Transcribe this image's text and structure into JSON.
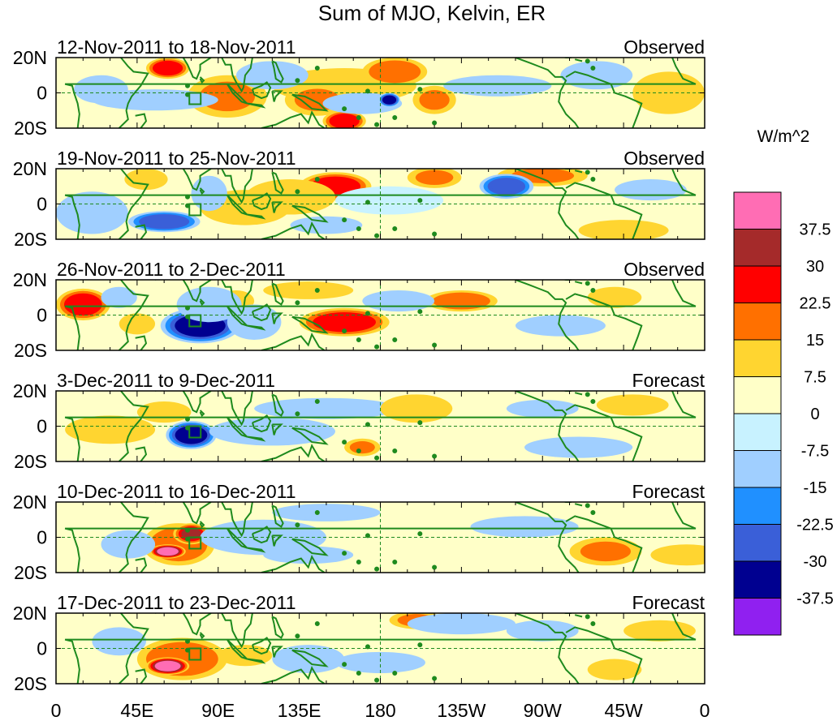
{
  "title": "Sum of MJO, Kelvin, ER",
  "units": "W/m^2",
  "lat_labels": [
    "20N",
    "0",
    "20S"
  ],
  "lon_labels": [
    "0",
    "45E",
    "90E",
    "135E",
    "180",
    "135W",
    "90W",
    "45W",
    "0"
  ],
  "colorbar": {
    "labels": [
      "37.5",
      "30",
      "22.5",
      "15",
      "7.5",
      "0",
      "-7.5",
      "-15",
      "-22.5",
      "-30",
      "-37.5"
    ],
    "colors": [
      "#ff6db4",
      "#a52a2a",
      "#ff0000",
      "#ff7000",
      "#ffd530",
      "#ffffc8",
      "#c8f2ff",
      "#a0cfff",
      "#2090ff",
      "#3a5fd8",
      "#000090",
      "#9020f0"
    ]
  },
  "panels": [
    {
      "period": "12-Nov-2011 to 18-Nov-2011",
      "type": "Observed",
      "blobs": [
        {
          "lon": 160,
          "lat": 4,
          "rx": 40,
          "ry": 10,
          "v": 8
        },
        {
          "lon": 145,
          "lat": -4,
          "rx": 18,
          "ry": 9,
          "v": 15
        },
        {
          "lon": 160,
          "lat": -16,
          "rx": 12,
          "ry": 6,
          "v": 25
        },
        {
          "lon": 62,
          "lat": 14,
          "rx": 12,
          "ry": 6,
          "v": 25
        },
        {
          "lon": 95,
          "lat": -2,
          "rx": 22,
          "ry": 12,
          "v": 15
        },
        {
          "lon": 188,
          "lat": 12,
          "rx": 18,
          "ry": 8,
          "v": 20
        },
        {
          "lon": 210,
          "lat": -4,
          "rx": 12,
          "ry": 8,
          "v": 15
        },
        {
          "lon": 340,
          "lat": 0,
          "rx": 20,
          "ry": 12,
          "v": 8
        },
        {
          "lon": 170,
          "lat": -6,
          "rx": 22,
          "ry": 6,
          "v": -15
        },
        {
          "lon": 185,
          "lat": -4,
          "rx": 6,
          "ry": 4,
          "v": -35
        },
        {
          "lon": 55,
          "lat": -4,
          "rx": 35,
          "ry": 6,
          "v": -12
        },
        {
          "lon": 25,
          "lat": 2,
          "rx": 15,
          "ry": 8,
          "v": -10
        },
        {
          "lon": 245,
          "lat": 4,
          "rx": 30,
          "ry": 6,
          "v": -12
        },
        {
          "lon": 120,
          "lat": 10,
          "rx": 20,
          "ry": 8,
          "v": -10
        },
        {
          "lon": 300,
          "lat": 10,
          "rx": 20,
          "ry": 8,
          "v": -9
        }
      ]
    },
    {
      "period": "19-Nov-2011 to 25-Nov-2011",
      "type": "Observed",
      "blobs": [
        {
          "lon": 155,
          "lat": 10,
          "rx": 20,
          "ry": 8,
          "v": 25
        },
        {
          "lon": 130,
          "lat": 4,
          "rx": 25,
          "ry": 10,
          "v": 10
        },
        {
          "lon": 210,
          "lat": 15,
          "rx": 15,
          "ry": 6,
          "v": 15
        },
        {
          "lon": 270,
          "lat": 16,
          "rx": 25,
          "ry": 6,
          "v": 15
        },
        {
          "lon": 50,
          "lat": 14,
          "rx": 12,
          "ry": 6,
          "v": 10
        },
        {
          "lon": 105,
          "lat": -2,
          "rx": 25,
          "ry": 10,
          "v": 8
        },
        {
          "lon": 315,
          "lat": -15,
          "rx": 25,
          "ry": 6,
          "v": 10
        },
        {
          "lon": 250,
          "lat": 10,
          "rx": 15,
          "ry": 7,
          "v": -30
        },
        {
          "lon": 60,
          "lat": -10,
          "rx": 20,
          "ry": 6,
          "v": -25
        },
        {
          "lon": 85,
          "lat": 6,
          "rx": 10,
          "ry": 10,
          "v": -15
        },
        {
          "lon": 20,
          "lat": -5,
          "rx": 20,
          "ry": 12,
          "v": -9
        },
        {
          "lon": 185,
          "lat": 2,
          "rx": 30,
          "ry": 8,
          "v": -6
        },
        {
          "lon": 150,
          "lat": -12,
          "rx": 20,
          "ry": 5,
          "v": -10
        },
        {
          "lon": 330,
          "lat": 8,
          "rx": 20,
          "ry": 6,
          "v": -9
        }
      ]
    },
    {
      "period": "26-Nov-2011 to 2-Dec-2011",
      "type": "Observed",
      "blobs": [
        {
          "lon": 160,
          "lat": -4,
          "rx": 25,
          "ry": 8,
          "v": 25
        },
        {
          "lon": 15,
          "lat": 6,
          "rx": 15,
          "ry": 9,
          "v": 25
        },
        {
          "lon": 225,
          "lat": 8,
          "rx": 20,
          "ry": 6,
          "v": 18
        },
        {
          "lon": 140,
          "lat": 14,
          "rx": 25,
          "ry": 5,
          "v": 10
        },
        {
          "lon": 45,
          "lat": -5,
          "rx": 10,
          "ry": 6,
          "v": 12
        },
        {
          "lon": 310,
          "lat": 10,
          "rx": 15,
          "ry": 6,
          "v": 8
        },
        {
          "lon": 100,
          "lat": 8,
          "rx": 10,
          "ry": 6,
          "v": 9
        },
        {
          "lon": 80,
          "lat": -6,
          "rx": 22,
          "ry": 10,
          "v": -33
        },
        {
          "lon": 85,
          "lat": 6,
          "rx": 18,
          "ry": 10,
          "v": -15
        },
        {
          "lon": 110,
          "lat": -4,
          "rx": 15,
          "ry": 10,
          "v": -10
        },
        {
          "lon": 280,
          "lat": -6,
          "rx": 25,
          "ry": 6,
          "v": -10
        },
        {
          "lon": 190,
          "lat": 8,
          "rx": 20,
          "ry": 6,
          "v": -8
        },
        {
          "lon": 35,
          "lat": 10,
          "rx": 10,
          "ry": 6,
          "v": -10
        }
      ]
    },
    {
      "period": "3-Dec-2011 to 9-Dec-2011",
      "type": "Forecast",
      "blobs": [
        {
          "lon": 75,
          "lat": -5,
          "rx": 14,
          "ry": 8,
          "v": -32
        },
        {
          "lon": 120,
          "lat": -3,
          "rx": 35,
          "ry": 8,
          "v": -14
        },
        {
          "lon": 150,
          "lat": 10,
          "rx": 40,
          "ry": 6,
          "v": -12
        },
        {
          "lon": 270,
          "lat": 10,
          "rx": 20,
          "ry": 5,
          "v": -10
        },
        {
          "lon": 290,
          "lat": -12,
          "rx": 30,
          "ry": 6,
          "v": -10
        },
        {
          "lon": 170,
          "lat": -12,
          "rx": 10,
          "ry": 5,
          "v": 15
        },
        {
          "lon": 200,
          "lat": 10,
          "rx": 20,
          "ry": 8,
          "v": 9
        },
        {
          "lon": 320,
          "lat": 12,
          "rx": 20,
          "ry": 6,
          "v": 9
        },
        {
          "lon": 225,
          "lat": -2,
          "rx": 15,
          "ry": 5,
          "v": 7
        },
        {
          "lon": 30,
          "lat": -2,
          "rx": 25,
          "ry": 8,
          "v": 8
        },
        {
          "lon": 60,
          "lat": 8,
          "rx": 15,
          "ry": 6,
          "v": 10
        }
      ]
    },
    {
      "period": "10-Dec-2011 to 16-Dec-2011",
      "type": "Forecast",
      "blobs": [
        {
          "lon": 68,
          "lat": -4,
          "rx": 20,
          "ry": 12,
          "v": 22
        },
        {
          "lon": 62,
          "lat": -8,
          "rx": 10,
          "ry": 4,
          "v": 38
        },
        {
          "lon": 75,
          "lat": 2,
          "rx": 10,
          "ry": 6,
          "v": 30
        },
        {
          "lon": 305,
          "lat": -8,
          "rx": 20,
          "ry": 8,
          "v": 15
        },
        {
          "lon": 200,
          "lat": 0,
          "rx": 40,
          "ry": 10,
          "v": 6
        },
        {
          "lon": 350,
          "lat": -10,
          "rx": 20,
          "ry": 6,
          "v": 8
        },
        {
          "lon": 115,
          "lat": 0,
          "rx": 35,
          "ry": 10,
          "v": -14
        },
        {
          "lon": 140,
          "lat": -10,
          "rx": 25,
          "ry": 5,
          "v": -12
        },
        {
          "lon": 150,
          "lat": 14,
          "rx": 30,
          "ry": 5,
          "v": -9
        },
        {
          "lon": 40,
          "lat": -4,
          "rx": 15,
          "ry": 8,
          "v": -12
        },
        {
          "lon": 260,
          "lat": 6,
          "rx": 30,
          "ry": 6,
          "v": -8
        }
      ]
    },
    {
      "period": "17-Dec-2011 to 23-Dec-2011",
      "type": "Forecast",
      "blobs": [
        {
          "lon": 70,
          "lat": -6,
          "rx": 25,
          "ry": 12,
          "v": 22
        },
        {
          "lon": 62,
          "lat": -10,
          "rx": 12,
          "ry": 5,
          "v": 38
        },
        {
          "lon": 200,
          "lat": 16,
          "rx": 15,
          "ry": 5,
          "v": 15
        },
        {
          "lon": 335,
          "lat": 10,
          "rx": 20,
          "ry": 6,
          "v": 10
        },
        {
          "lon": 310,
          "lat": -12,
          "rx": 15,
          "ry": 6,
          "v": 10
        },
        {
          "lon": 105,
          "lat": -4,
          "rx": 15,
          "ry": 6,
          "v": 10
        },
        {
          "lon": 140,
          "lat": -6,
          "rx": 20,
          "ry": 8,
          "v": -15
        },
        {
          "lon": 225,
          "lat": 14,
          "rx": 30,
          "ry": 6,
          "v": -12
        },
        {
          "lon": 270,
          "lat": 10,
          "rx": 20,
          "ry": 6,
          "v": -10
        },
        {
          "lon": 180,
          "lat": -8,
          "rx": 25,
          "ry": 6,
          "v": -8
        },
        {
          "lon": 35,
          "lat": 4,
          "rx": 15,
          "ry": 8,
          "v": -9
        }
      ]
    }
  ]
}
